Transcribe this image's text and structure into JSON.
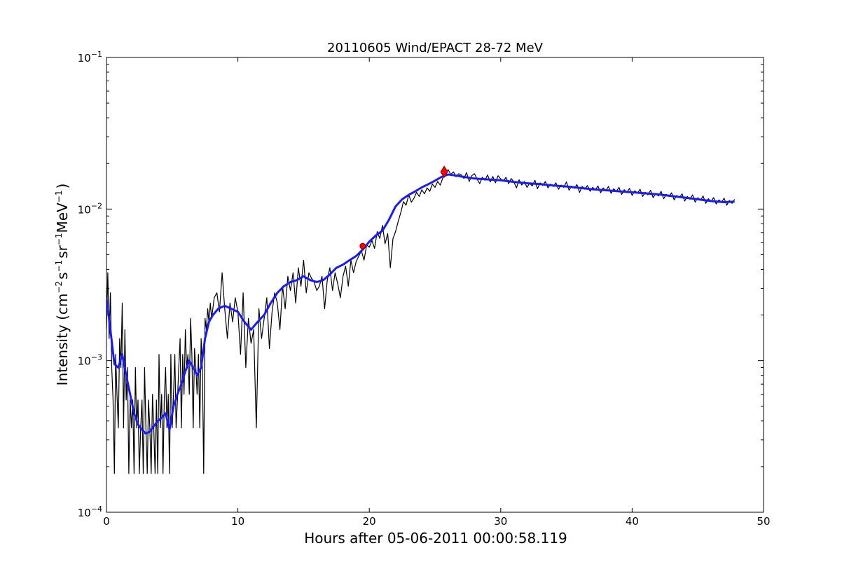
{
  "chart_data": {
    "type": "line",
    "title": "20110605 Wind/EPACT 28-72 MeV",
    "xlabel": "Hours after 05-06-2011 00:00:58.119",
    "ylabel": {
      "prefix": "Intensity (cm",
      "exp1": "−2",
      "part2": "s",
      "exp2": "−1",
      "part3": "sr",
      "exp3": "−1",
      "part4": "MeV",
      "exp4": "−1",
      "suffix": ")"
    },
    "xlim": [
      0,
      50
    ],
    "ylim": [
      0.0001,
      0.1
    ],
    "yscale": "log",
    "grid": false,
    "x_ticks": [
      {
        "value": 0,
        "label": "0"
      },
      {
        "value": 10,
        "label": "10"
      },
      {
        "value": 20,
        "label": "20"
      },
      {
        "value": 30,
        "label": "30"
      },
      {
        "value": 40,
        "label": "40"
      },
      {
        "value": 50,
        "label": "50"
      }
    ],
    "y_ticks": [
      {
        "value": 0.0001,
        "base": "10",
        "exp": "−4"
      },
      {
        "value": 0.001,
        "base": "10",
        "exp": "−3"
      },
      {
        "value": 0.01,
        "base": "10",
        "exp": "−2"
      },
      {
        "value": 0.1,
        "base": "10",
        "exp": "−1"
      }
    ],
    "series": [
      {
        "kind": "raw",
        "color": "#000000",
        "x": [
          0.0,
          0.1,
          0.2,
          0.3,
          0.4,
          0.5,
          0.6,
          0.7,
          0.8,
          0.9,
          1.0,
          1.1,
          1.2,
          1.3,
          1.4,
          1.5,
          1.6,
          1.7,
          1.8,
          1.9,
          2.0,
          2.1,
          2.2,
          2.3,
          2.4,
          2.5,
          2.6,
          2.7,
          2.8,
          2.9,
          3.0,
          3.1,
          3.2,
          3.3,
          3.4,
          3.5,
          3.6,
          3.7,
          3.8,
          3.9,
          4.0,
          4.1,
          4.2,
          4.3,
          4.4,
          4.5,
          4.6,
          4.7,
          4.8,
          4.9,
          5.0,
          5.1,
          5.2,
          5.3,
          5.4,
          5.5,
          5.6,
          5.7,
          5.8,
          5.9,
          6.0,
          6.1,
          6.2,
          6.3,
          6.4,
          6.5,
          6.6,
          6.7,
          6.8,
          6.9,
          7.0,
          7.1,
          7.2,
          7.3,
          7.4,
          7.5,
          7.6,
          7.7,
          7.8,
          7.9,
          8.0,
          8.2,
          8.4,
          8.6,
          8.8,
          9.0,
          9.2,
          9.4,
          9.6,
          9.8,
          10.0,
          10.2,
          10.4,
          10.6,
          10.8,
          11.0,
          11.2,
          11.4,
          11.6,
          11.8,
          12.0,
          12.2,
          12.4,
          12.6,
          12.8,
          13.0,
          13.2,
          13.4,
          13.6,
          13.8,
          14.0,
          14.2,
          14.4,
          14.6,
          14.8,
          15.0,
          15.2,
          15.4,
          15.6,
          15.8,
          16.0,
          16.2,
          16.4,
          16.6,
          16.8,
          17.0,
          17.2,
          17.4,
          17.6,
          17.8,
          18.0,
          18.2,
          18.4,
          18.6,
          18.8,
          19.0,
          19.2,
          19.4,
          19.6,
          19.8,
          20.0,
          20.2,
          20.4,
          20.6,
          20.8,
          21.0,
          21.2,
          21.4,
          21.6,
          21.8,
          22.0,
          22.2,
          22.4,
          22.6,
          22.8,
          23.0,
          23.2,
          23.4,
          23.6,
          23.8,
          24.0,
          24.2,
          24.4,
          24.6,
          24.8,
          25.0,
          25.2,
          25.4,
          25.6,
          25.8,
          26.0,
          26.2,
          26.4,
          26.6,
          26.8,
          27.0,
          27.2,
          27.4,
          27.6,
          27.8,
          28.0,
          28.2,
          28.4,
          28.6,
          28.8,
          29.0,
          29.2,
          29.4,
          29.6,
          29.8,
          30.0,
          30.2,
          30.4,
          30.6,
          30.8,
          31.0,
          31.2,
          31.4,
          31.6,
          31.8,
          32.0,
          32.2,
          32.4,
          32.6,
          32.8,
          33.0,
          33.2,
          33.4,
          33.6,
          33.8,
          34.0,
          34.2,
          34.4,
          34.6,
          34.8,
          35.0,
          35.2,
          35.4,
          35.6,
          35.8,
          36.0,
          36.2,
          36.4,
          36.6,
          36.8,
          37.0,
          37.2,
          37.4,
          37.6,
          37.8,
          38.0,
          38.2,
          38.4,
          38.6,
          38.8,
          39.0,
          39.2,
          39.4,
          39.6,
          39.8,
          40.0,
          40.2,
          40.4,
          40.6,
          40.8,
          41.0,
          41.2,
          41.4,
          41.6,
          41.8,
          42.0,
          42.2,
          42.4,
          42.6,
          42.8,
          43.0,
          43.2,
          43.4,
          43.6,
          43.8,
          44.0,
          44.2,
          44.4,
          44.6,
          44.8,
          45.0,
          45.2,
          45.4,
          45.6,
          45.8,
          46.0,
          46.2,
          46.4,
          46.6,
          46.8,
          47.0,
          47.2,
          47.4,
          47.6,
          47.8
        ],
        "y": [
          0.0016,
          0.0038,
          0.0014,
          0.0028,
          0.0009,
          0.00055,
          0.00018,
          0.0011,
          0.0006,
          0.00036,
          0.0014,
          0.0009,
          0.0024,
          0.00036,
          0.0016,
          0.00055,
          0.0009,
          0.00018,
          0.00055,
          0.00036,
          0.00055,
          0.00018,
          0.0009,
          0.00036,
          0.00055,
          0.00018,
          0.00036,
          0.00055,
          0.00018,
          0.0009,
          0.00036,
          0.00018,
          0.00055,
          0.00036,
          0.00018,
          0.0006,
          0.00036,
          0.00018,
          0.00055,
          0.00018,
          0.0011,
          0.00036,
          0.0006,
          0.00018,
          0.00055,
          0.0009,
          0.00036,
          0.0006,
          0.00018,
          0.0011,
          0.00036,
          0.0006,
          0.0011,
          0.00036,
          0.00055,
          0.0009,
          0.0014,
          0.00036,
          0.0011,
          0.0006,
          0.0016,
          0.0009,
          0.0011,
          0.0006,
          0.0019,
          0.0011,
          0.00036,
          0.0012,
          0.0009,
          0.0006,
          0.0011,
          0.00036,
          0.0014,
          0.0009,
          0.00018,
          0.0019,
          0.0016,
          0.0022,
          0.0018,
          0.0024,
          0.0019,
          0.0026,
          0.0028,
          0.0021,
          0.0038,
          0.0022,
          0.0014,
          0.0024,
          0.0018,
          0.0026,
          0.0021,
          0.0011,
          0.0028,
          0.0009,
          0.0019,
          0.0013,
          0.0016,
          0.00036,
          0.0022,
          0.0014,
          0.0019,
          0.0026,
          0.0012,
          0.0021,
          0.0028,
          0.0024,
          0.0016,
          0.0031,
          0.0022,
          0.0036,
          0.0029,
          0.0038,
          0.0024,
          0.0041,
          0.0031,
          0.0046,
          0.0028,
          0.0038,
          0.0035,
          0.0033,
          0.0029,
          0.0031,
          0.0036,
          0.0022,
          0.0034,
          0.0041,
          0.0029,
          0.0038,
          0.0032,
          0.0026,
          0.0036,
          0.0042,
          0.0031,
          0.0046,
          0.0038,
          0.0045,
          0.0049,
          0.0053,
          0.0046,
          0.0058,
          0.0056,
          0.0062,
          0.0055,
          0.0071,
          0.0064,
          0.0078,
          0.0059,
          0.0069,
          0.0041,
          0.0064,
          0.0071,
          0.0083,
          0.0095,
          0.0112,
          0.0106,
          0.0124,
          0.0111,
          0.0118,
          0.0129,
          0.0121,
          0.0134,
          0.0126,
          0.0138,
          0.0131,
          0.0146,
          0.0139,
          0.0152,
          0.0144,
          0.0161,
          0.0174,
          0.0182,
          0.0169,
          0.0176,
          0.0163,
          0.0171,
          0.0168,
          0.0159,
          0.0174,
          0.0152,
          0.0166,
          0.0171,
          0.0158,
          0.0147,
          0.0162,
          0.0155,
          0.0168,
          0.0151,
          0.0164,
          0.0149,
          0.0166,
          0.0158,
          0.0153,
          0.0162,
          0.0147,
          0.0159,
          0.0151,
          0.0138,
          0.0156,
          0.0144,
          0.0152,
          0.0139,
          0.0148,
          0.0142,
          0.0155,
          0.0136,
          0.0149,
          0.0143,
          0.0152,
          0.0138,
          0.0146,
          0.0141,
          0.0149,
          0.0135,
          0.0144,
          0.0139,
          0.0151,
          0.0133,
          0.0142,
          0.0137,
          0.0145,
          0.0129,
          0.0141,
          0.0135,
          0.0143,
          0.0131,
          0.0139,
          0.0134,
          0.0142,
          0.0128,
          0.0138,
          0.0132,
          0.0141,
          0.0127,
          0.0136,
          0.0131,
          0.0139,
          0.0125,
          0.0134,
          0.0129,
          0.0137,
          0.0123,
          0.0132,
          0.0127,
          0.0135,
          0.0121,
          0.0129,
          0.0124,
          0.0133,
          0.0119,
          0.0127,
          0.0122,
          0.0131,
          0.0117,
          0.0125,
          0.0121,
          0.0128,
          0.0115,
          0.0123,
          0.0119,
          0.0126,
          0.0113,
          0.0121,
          0.0116,
          0.0124,
          0.0111,
          0.0119,
          0.0114,
          0.0122,
          0.0109,
          0.0117,
          0.0112,
          0.0119,
          0.0108,
          0.0115,
          0.0111,
          0.0118,
          0.0106,
          0.0114,
          0.0109,
          0.0116
        ]
      },
      {
        "kind": "smoothed",
        "color": "#1a1aff",
        "x": [
          0.0,
          0.3,
          0.6,
          0.9,
          1.2,
          1.5,
          1.8,
          2.1,
          2.4,
          2.7,
          3.0,
          3.3,
          3.6,
          3.9,
          4.2,
          4.5,
          4.8,
          5.1,
          5.4,
          5.7,
          6.0,
          6.3,
          6.6,
          6.9,
          7.2,
          7.5,
          7.8,
          8.1,
          8.5,
          9.0,
          9.5,
          10.0,
          10.5,
          11.0,
          11.5,
          12.0,
          12.5,
          13.0,
          13.5,
          14.0,
          14.5,
          15.0,
          15.5,
          16.0,
          16.5,
          17.0,
          17.5,
          18.0,
          18.5,
          19.0,
          19.5,
          20.0,
          20.5,
          21.0,
          21.5,
          22.0,
          22.5,
          23.0,
          23.5,
          24.0,
          24.5,
          25.0,
          25.5,
          26.0,
          26.5,
          27.0,
          28.0,
          29.0,
          30.0,
          31.0,
          32.0,
          33.0,
          34.0,
          35.0,
          36.0,
          37.0,
          38.0,
          39.0,
          40.0,
          41.0,
          42.0,
          43.0,
          44.0,
          45.0,
          46.0,
          47.0,
          47.8
        ],
        "y": [
          0.0026,
          0.0016,
          0.00095,
          0.0009,
          0.0011,
          0.0008,
          0.0006,
          0.00045,
          0.00038,
          0.00035,
          0.00033,
          0.00034,
          0.00037,
          0.0004,
          0.00042,
          0.00045,
          0.00035,
          0.0005,
          0.0006,
          0.0007,
          0.00085,
          0.001,
          0.0009,
          0.0008,
          0.0009,
          0.0014,
          0.0018,
          0.002,
          0.0022,
          0.0023,
          0.0022,
          0.0021,
          0.0018,
          0.0016,
          0.0018,
          0.002,
          0.0024,
          0.0028,
          0.0031,
          0.0033,
          0.0034,
          0.0036,
          0.0034,
          0.0033,
          0.0034,
          0.0037,
          0.0041,
          0.0043,
          0.0046,
          0.0049,
          0.0054,
          0.0061,
          0.0067,
          0.0072,
          0.0085,
          0.0104,
          0.0116,
          0.0124,
          0.0131,
          0.0139,
          0.0146,
          0.0154,
          0.0163,
          0.0169,
          0.0167,
          0.0164,
          0.0159,
          0.0157,
          0.0155,
          0.0151,
          0.0148,
          0.0146,
          0.0143,
          0.0141,
          0.0138,
          0.0135,
          0.0133,
          0.0131,
          0.0129,
          0.0127,
          0.0125,
          0.0122,
          0.0119,
          0.0116,
          0.0113,
          0.0111,
          0.0112
        ]
      }
    ],
    "markers": [
      {
        "x": 19.5,
        "y": 0.0057,
        "color": "#ff0000",
        "shape": "circle"
      },
      {
        "x": 25.7,
        "y": 0.0176,
        "color": "#ff0000",
        "shape": "diamond"
      }
    ]
  }
}
